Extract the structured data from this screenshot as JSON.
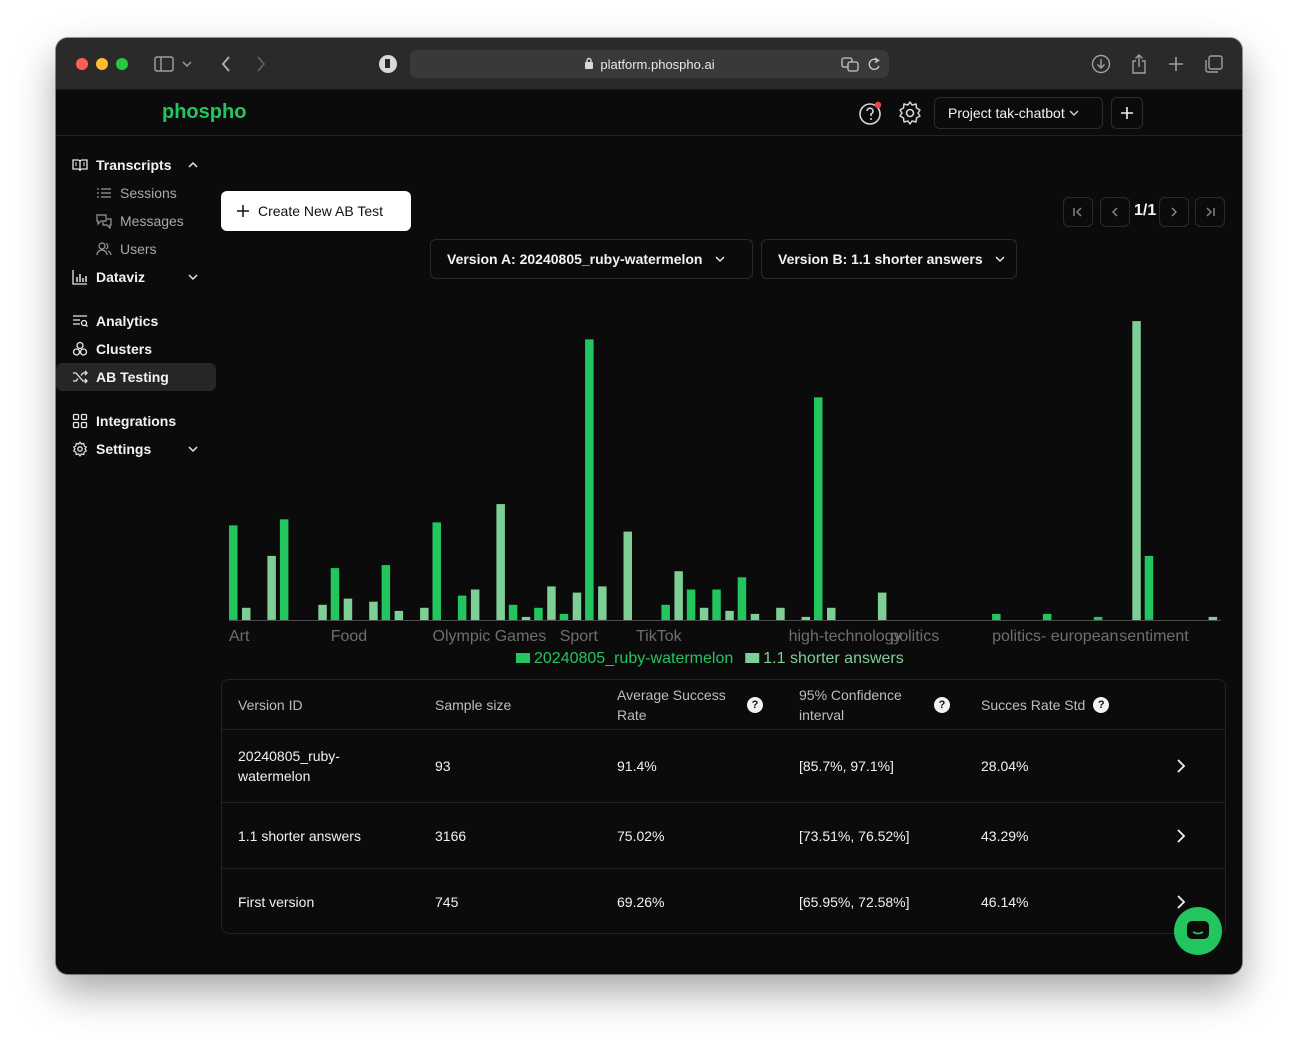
{
  "browser": {
    "url": "platform.phospho.ai"
  },
  "app": {
    "logo": "phospho",
    "project_label": "Project tak-chatbot"
  },
  "sidebar": {
    "items": [
      {
        "label": "Transcripts"
      },
      {
        "label": "Sessions"
      },
      {
        "label": "Messages"
      },
      {
        "label": "Users"
      },
      {
        "label": "Dataviz"
      },
      {
        "label": "Analytics"
      },
      {
        "label": "Clusters"
      },
      {
        "label": "AB Testing"
      },
      {
        "label": "Integrations"
      },
      {
        "label": "Settings"
      }
    ],
    "active": "AB Testing"
  },
  "toolbar": {
    "create_label": "Create New AB Test",
    "pager": "1/1",
    "version_a": "Version A: 20240805_ruby-watermelon",
    "version_b": "Version B: 1.1 shorter answers"
  },
  "chart_data": {
    "type": "bar",
    "colors": {
      "series_a": "#22c55e",
      "series_b": "#7dcf95"
    },
    "ylim": [
      0,
      100
    ],
    "grid": false,
    "legend_position": "bottom-center",
    "tick_labels": [
      "Art",
      "Food",
      "Olympic Games",
      "Sport",
      "TikTok",
      "high-technology",
      "politics",
      "politics- european",
      "sentiment"
    ],
    "series": [
      {
        "name": "20240805_ruby-watermelon",
        "values": [
          31,
          0,
          33,
          0,
          17,
          0,
          18,
          0,
          32,
          8,
          0,
          5,
          4,
          2,
          92,
          0,
          0,
          5,
          10,
          10,
          14,
          0,
          0,
          73,
          0,
          0,
          0,
          0,
          0,
          0,
          2,
          0,
          2,
          0,
          1,
          0,
          21,
          0,
          0
        ]
      },
      {
        "name": "1.1 shorter answers",
        "values": [
          4,
          21,
          0,
          5,
          7,
          6,
          3,
          4,
          0,
          10,
          38,
          1,
          11,
          9,
          11,
          29,
          0,
          16,
          4,
          3,
          2,
          4,
          1,
          4,
          0,
          9,
          0,
          0,
          0,
          0,
          0,
          0,
          0,
          0,
          0,
          98,
          0,
          0,
          1
        ]
      }
    ]
  },
  "table": {
    "headers": [
      "Version ID",
      "Sample size",
      "Average Success Rate",
      "95% Confidence interval",
      "Succes Rate Std"
    ],
    "rows": [
      {
        "version": "20240805_ruby-watermelon",
        "sample": "93",
        "avg": "91.4%",
        "ci": "[85.7%, 97.1%]",
        "std": "28.04%"
      },
      {
        "version": "1.1 shorter answers",
        "sample": "3166",
        "avg": "75.02%",
        "ci": "[73.51%, 76.52%]",
        "std": "43.29%"
      },
      {
        "version": "First version",
        "sample": "745",
        "avg": "69.26%",
        "ci": "[65.95%, 72.58%]",
        "std": "46.14%"
      }
    ]
  }
}
